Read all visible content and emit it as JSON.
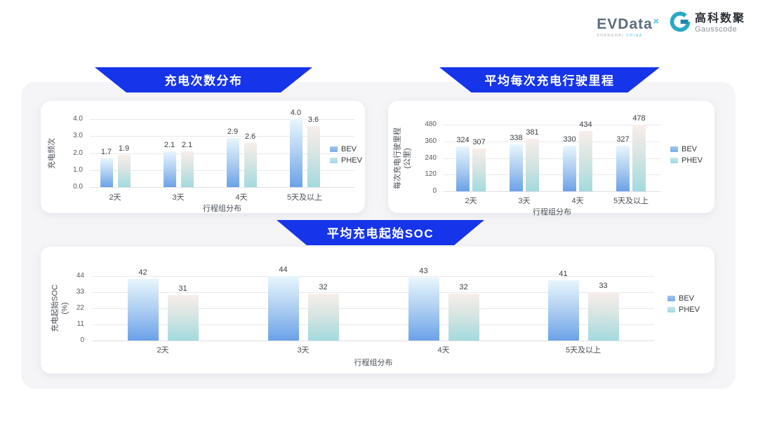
{
  "brand": {
    "name": "EVData",
    "mark": "×",
    "tagline_region": "SHANGHAI",
    "tagline_country": "CHINA",
    "partner_cn": "高科数聚",
    "partner_en": "Gausscode"
  },
  "colors": {
    "banner_blue": "#1634ea",
    "bev_gradient_top": "#e8f6fc",
    "bev_gradient_bottom": "#6aa2e8",
    "phev_gradient_top": "#f8eeea",
    "phev_gradient_bottom": "#a3dade",
    "panel_bg": "#f5f5f7",
    "card_bg": "#ffffff"
  },
  "chart_data": [
    {
      "type": "bar",
      "title": "充电次数分布",
      "xlabel": "行程组分布",
      "ylabel": "充电频次",
      "ylabel_unit": "",
      "categories": [
        "2天",
        "3天",
        "4天",
        "5天及以上"
      ],
      "ylim": [
        0,
        4
      ],
      "y_ticks": [
        0,
        1,
        2,
        3,
        4
      ],
      "y_tick_labels": [
        "0.0",
        "1.0",
        "2.0",
        "3.0",
        "4.0"
      ],
      "grid": true,
      "legend_position": "right",
      "series": [
        {
          "name": "BEV",
          "values": [
            1.7,
            2.1,
            2.9,
            4.0
          ],
          "labels": [
            "1.7",
            "2.1",
            "2.9",
            "4.0"
          ]
        },
        {
          "name": "PHEV",
          "values": [
            1.9,
            2.1,
            2.6,
            3.6
          ],
          "labels": [
            "1.9",
            "2.1",
            "2.6",
            "3.6"
          ]
        }
      ]
    },
    {
      "type": "bar",
      "title": "平均每次充电行驶里程",
      "xlabel": "行程组分布",
      "ylabel": "每次充电行驶里程",
      "ylabel_unit": "(公里)",
      "categories": [
        "2天",
        "3天",
        "4天",
        "5天及以上"
      ],
      "ylim": [
        0,
        480
      ],
      "y_ticks": [
        0,
        120,
        240,
        360,
        480
      ],
      "y_tick_labels": [
        "0",
        "120",
        "240",
        "360",
        "480"
      ],
      "grid": true,
      "legend_position": "right",
      "series": [
        {
          "name": "BEV",
          "values": [
            324,
            338,
            330,
            327
          ],
          "labels": [
            "324",
            "338",
            "330",
            "327"
          ]
        },
        {
          "name": "PHEV",
          "values": [
            307,
            381,
            434,
            478
          ],
          "labels": [
            "307",
            "381",
            "434",
            "478"
          ]
        }
      ]
    },
    {
      "type": "bar",
      "title": "平均充电起始SOC",
      "xlabel": "行程组分布",
      "ylabel": "充电起始SOC",
      "ylabel_unit": "(%)",
      "categories": [
        "2天",
        "3天",
        "4天",
        "5天及以上"
      ],
      "ylim": [
        0,
        44
      ],
      "y_ticks": [
        0,
        11,
        22,
        33,
        44
      ],
      "y_tick_labels": [
        "0",
        "11",
        "22",
        "33",
        "44"
      ],
      "grid": true,
      "legend_position": "right",
      "series": [
        {
          "name": "BEV",
          "values": [
            42,
            44,
            43,
            41
          ],
          "labels": [
            "42",
            "44",
            "43",
            "41"
          ]
        },
        {
          "name": "PHEV",
          "values": [
            31,
            32,
            32,
            33
          ],
          "labels": [
            "31",
            "32",
            "32",
            "33"
          ]
        }
      ]
    }
  ]
}
